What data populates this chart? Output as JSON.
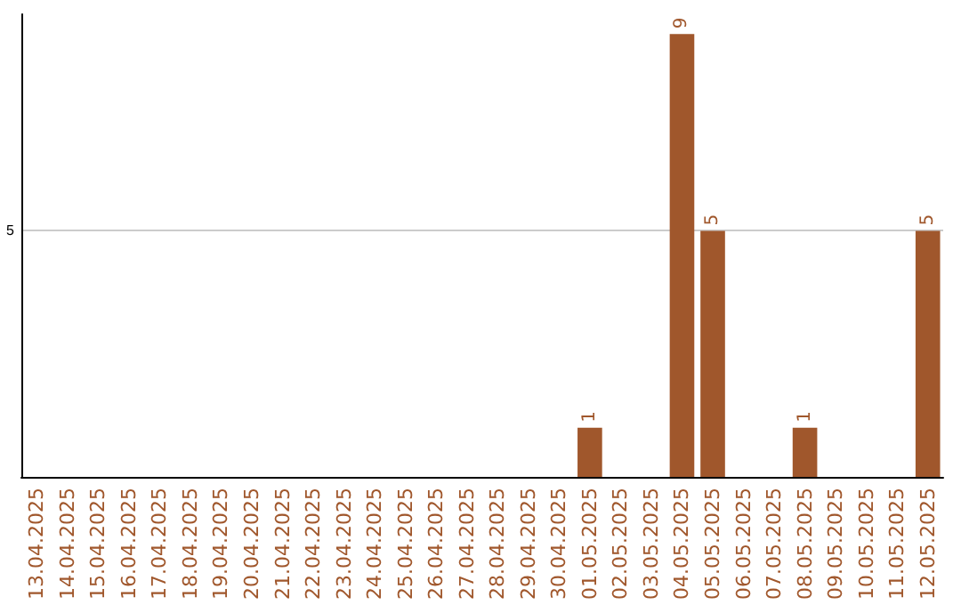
{
  "chart_data": {
    "type": "bar",
    "categories": [
      "13.04.2025",
      "14.04.2025",
      "15.04.2025",
      "16.04.2025",
      "17.04.2025",
      "18.04.2025",
      "19.04.2025",
      "20.04.2025",
      "21.04.2025",
      "22.04.2025",
      "23.04.2025",
      "24.04.2025",
      "25.04.2025",
      "26.04.2025",
      "27.04.2025",
      "28.04.2025",
      "29.04.2025",
      "30.04.2025",
      "01.05.2025",
      "02.05.2025",
      "03.05.2025",
      "04.05.2025",
      "05.05.2025",
      "06.05.2025",
      "07.05.2025",
      "08.05.2025",
      "09.05.2025",
      "10.05.2025",
      "11.05.2025",
      "12.05.2025"
    ],
    "values": [
      null,
      null,
      null,
      null,
      null,
      null,
      null,
      null,
      null,
      null,
      null,
      null,
      null,
      null,
      null,
      null,
      null,
      null,
      1,
      null,
      null,
      9,
      5,
      null,
      null,
      1,
      null,
      null,
      null,
      5
    ],
    "color": "#a0572c",
    "ylim": [
      0,
      9.4
    ],
    "yticks": [
      5
    ],
    "grid": "y",
    "data_labels": true
  }
}
